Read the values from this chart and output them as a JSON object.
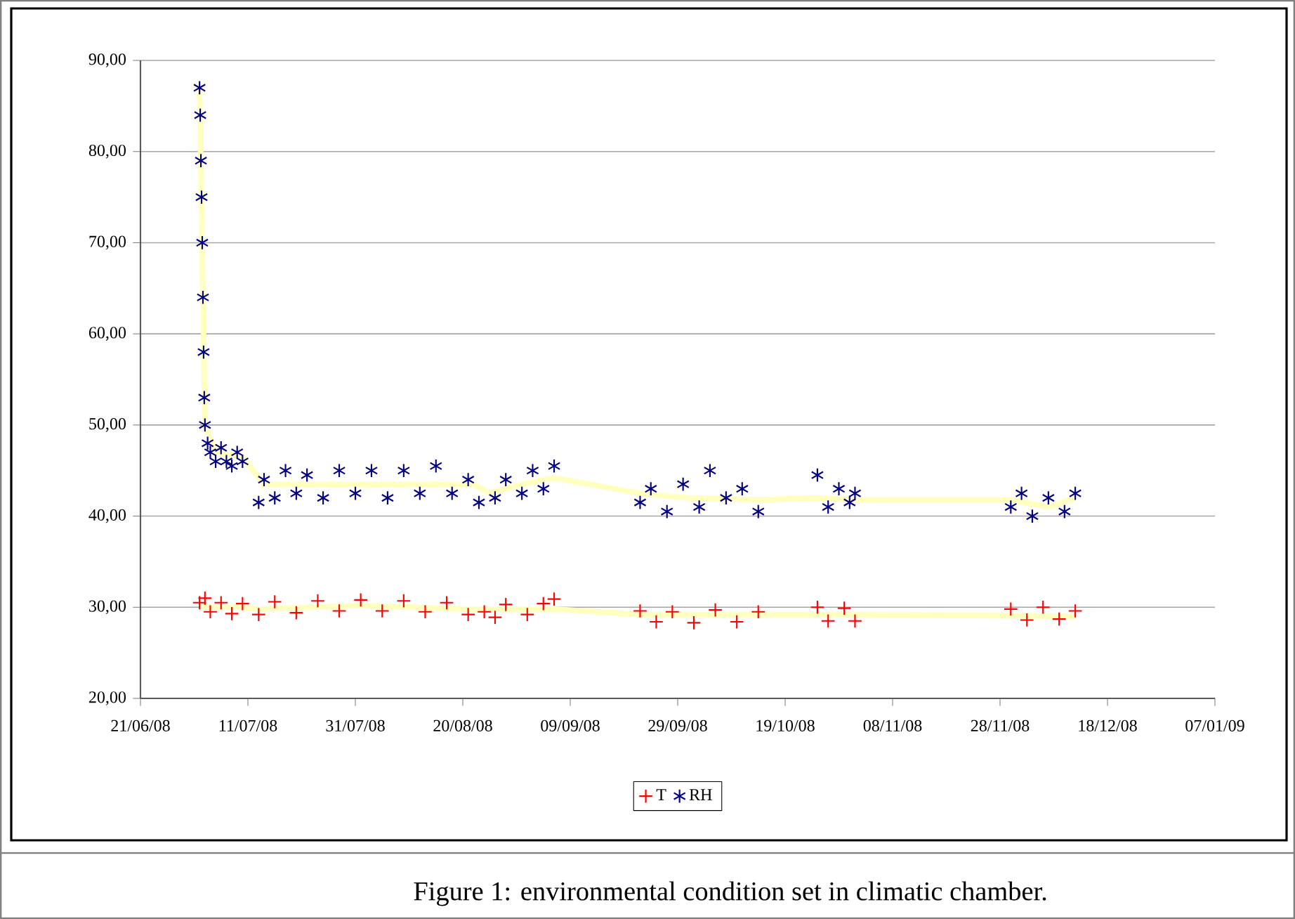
{
  "chart_data": {
    "type": "scatter",
    "annotations": [
      "Figure 1: environmental condition set in climatic chamber."
    ],
    "xlim": [
      "2008-06-21",
      "2009-01-07"
    ],
    "xticks": [
      {
        "value": "2008-06-21",
        "label": "21/06/08"
      },
      {
        "value": "2008-07-11",
        "label": "11/07/08"
      },
      {
        "value": "2008-07-31",
        "label": "31/07/08"
      },
      {
        "value": "2008-08-20",
        "label": "20/08/08"
      },
      {
        "value": "2008-09-09",
        "label": "09/09/08"
      },
      {
        "value": "2008-09-29",
        "label": "29/09/08"
      },
      {
        "value": "2008-10-19",
        "label": "19/10/08"
      },
      {
        "value": "2008-11-08",
        "label": "08/11/08"
      },
      {
        "value": "2008-11-28",
        "label": "28/11/08"
      },
      {
        "value": "2008-12-18",
        "label": "18/12/08"
      },
      {
        "value": "2009-01-07",
        "label": "07/01/09"
      }
    ],
    "ylim": [
      20,
      90
    ],
    "yticks": [
      {
        "value": 20,
        "label": "20,00"
      },
      {
        "value": 30,
        "label": "30,00"
      },
      {
        "value": 40,
        "label": "40,00"
      },
      {
        "value": 50,
        "label": "50,00"
      },
      {
        "value": 60,
        "label": "60,00"
      },
      {
        "value": 70,
        "label": "70,00"
      },
      {
        "value": 80,
        "label": "80,00"
      },
      {
        "value": 90,
        "label": "90,00"
      }
    ],
    "grid": "y",
    "legend": "bottom",
    "series": [
      {
        "name": "T",
        "color": "#ff0000",
        "marker": "cross",
        "x": [
          "2008-07-02",
          "2008-07-03",
          "2008-07-04",
          "2008-07-06",
          "2008-07-08",
          "2008-07-10",
          "2008-07-13",
          "2008-07-16",
          "2008-07-20",
          "2008-07-24",
          "2008-07-28",
          "2008-08-01",
          "2008-08-05",
          "2008-08-09",
          "2008-08-13",
          "2008-08-17",
          "2008-08-21",
          "2008-08-24",
          "2008-08-26",
          "2008-08-28",
          "2008-09-01",
          "2008-09-04",
          "2008-09-06",
          "2008-09-22",
          "2008-09-25",
          "2008-09-28",
          "2008-10-02",
          "2008-10-06",
          "2008-10-10",
          "2008-10-14",
          "2008-10-25",
          "2008-10-27",
          "2008-10-30",
          "2008-11-01",
          "2008-11-30",
          "2008-12-03",
          "2008-12-06",
          "2008-12-09",
          "2008-12-12"
        ],
        "values": [
          30.5,
          31,
          29.5,
          30.5,
          29.3,
          30.4,
          29.2,
          30.6,
          29.4,
          30.7,
          29.6,
          30.8,
          29.6,
          30.7,
          29.5,
          30.5,
          29.2,
          29.5,
          28.9,
          30.3,
          29.2,
          30.4,
          30.9,
          29.6,
          28.4,
          29.5,
          28.3,
          29.7,
          28.4,
          29.5,
          30.0,
          28.5,
          29.9,
          28.5,
          29.8,
          28.6,
          30.0,
          28.7,
          29.6
        ]
      },
      {
        "name": "RH",
        "color": "#000080",
        "x": [
          "2008-07-02T00:00",
          "2008-07-02T03:00",
          "2008-07-02T06:00",
          "2008-07-02T09:00",
          "2008-07-02T12:00",
          "2008-07-02T15:00",
          "2008-07-02T18:00",
          "2008-07-02T21:00",
          "2008-07-03T00:00",
          "2008-07-03T12:00",
          "2008-07-04",
          "2008-07-05",
          "2008-07-06",
          "2008-07-07",
          "2008-07-08",
          "2008-07-09",
          "2008-07-10",
          "2008-07-13",
          "2008-07-14",
          "2008-07-16",
          "2008-07-18",
          "2008-07-20",
          "2008-07-22",
          "2008-07-25",
          "2008-07-28",
          "2008-07-31",
          "2008-08-03",
          "2008-08-06",
          "2008-08-09",
          "2008-08-12",
          "2008-08-15",
          "2008-08-18",
          "2008-08-21",
          "2008-08-23",
          "2008-08-26",
          "2008-08-28",
          "2008-08-31",
          "2008-09-02",
          "2008-09-04",
          "2008-09-06",
          "2008-09-22",
          "2008-09-24",
          "2008-09-27",
          "2008-09-30",
          "2008-10-03",
          "2008-10-05",
          "2008-10-08",
          "2008-10-11",
          "2008-10-14",
          "2008-10-25",
          "2008-10-27",
          "2008-10-29",
          "2008-10-31",
          "2008-11-01",
          "2008-11-30",
          "2008-12-02",
          "2008-12-04",
          "2008-12-07",
          "2008-12-10",
          "2008-12-12"
        ],
        "values": [
          87,
          84,
          79,
          75,
          70,
          64,
          58,
          53,
          50,
          48,
          47,
          46,
          47.5,
          46,
          45.5,
          47,
          46,
          41.5,
          44,
          42,
          45,
          42.5,
          44.5,
          42,
          45,
          42.5,
          45,
          42,
          45,
          42.5,
          45.5,
          42.5,
          44,
          41.5,
          42,
          44,
          42.5,
          45,
          43,
          45.5,
          41.5,
          43,
          40.5,
          43.5,
          41,
          45,
          42,
          43,
          40.5,
          44.5,
          41,
          43,
          41.5,
          42.5,
          41,
          42.5,
          40,
          42,
          40.5,
          42.5
        ]
      },
      {
        "type": "line",
        "color": "#ffffc0",
        "line_style": "solid",
        "x": [
          "2008-07-02",
          "2008-07-10",
          "2008-07-13",
          "2008-08-01",
          "2008-08-21",
          "2008-09-06",
          "2008-09-22",
          "2008-10-14",
          "2008-11-01",
          "2008-12-12"
        ],
        "values": [
          30,
          30,
          29.8,
          30.2,
          29.8,
          29.8,
          29.2,
          29.2,
          29.2,
          29
        ]
      },
      {
        "type": "line",
        "color": "#ffffc0",
        "line_style": "solid",
        "x": [
          "2008-07-02",
          "2008-07-03",
          "2008-07-05",
          "2008-07-10",
          "2008-07-14",
          "2008-07-18",
          "2008-08-22",
          "2008-08-25",
          "2008-08-31",
          "2008-09-06",
          "2008-09-22",
          "2008-10-01",
          "2008-10-14",
          "2008-10-25",
          "2008-11-01",
          "2008-11-30",
          "2008-12-07",
          "2008-12-12"
        ],
        "values": [
          87,
          50,
          47,
          46.5,
          43.5,
          43.5,
          43.5,
          42.5,
          43.5,
          44.2,
          42.5,
          42,
          41.8,
          42,
          41.8,
          41.8,
          41,
          42
        ]
      }
    ]
  }
}
